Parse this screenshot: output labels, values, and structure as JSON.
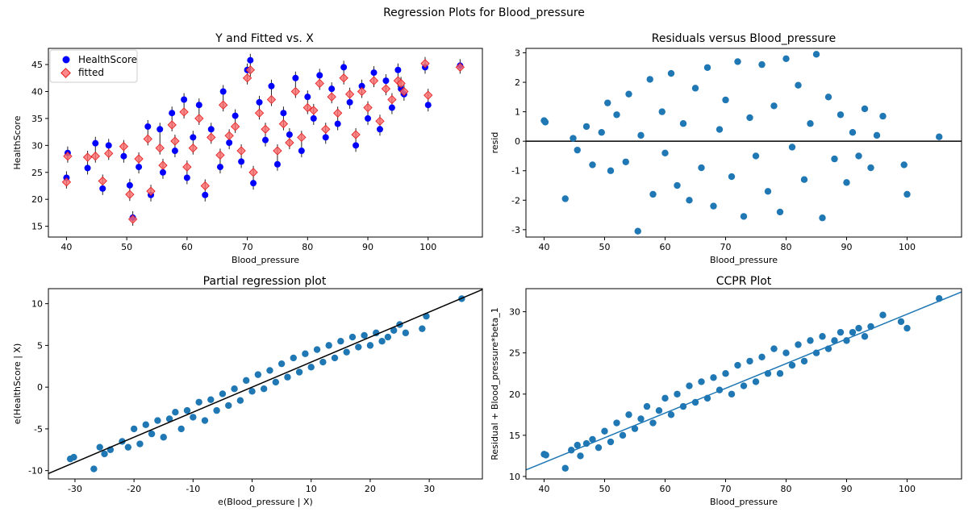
{
  "figure_title": "Regression Plots for Blood_pressure",
  "colors": {
    "observed": "#0000ff",
    "fitted": "#ff6b6b",
    "errorbar": "#222222",
    "scatter": "#1f77b4",
    "refline": "#000000",
    "ccpr_line": "#1f77b4"
  },
  "chart_data": [
    {
      "type": "scatter",
      "title": "Y and Fitted vs. X",
      "xlabel": "Blood_pressure",
      "ylabel": "HealthScore",
      "xlim": [
        37,
        109
      ],
      "ylim": [
        13,
        48
      ],
      "xticks": [
        40,
        50,
        60,
        70,
        80,
        90,
        100
      ],
      "yticks": [
        15,
        20,
        25,
        30,
        35,
        40,
        45
      ],
      "grid": false,
      "legend_position": "top-left",
      "series": [
        {
          "name": "HealthScore",
          "marker": "circle",
          "points": []
        },
        {
          "name": "fitted",
          "marker": "diamond",
          "points": []
        }
      ],
      "points": [
        [
          40,
          24.0,
          23.2
        ],
        [
          40.2,
          28.6,
          28.0
        ],
        [
          43.5,
          25.8,
          27.8
        ],
        [
          44.8,
          30.4,
          28.0
        ],
        [
          46,
          22.0,
          23.4
        ],
        [
          47,
          30.0,
          28.5
        ],
        [
          49.5,
          28.0,
          29.8
        ],
        [
          50.5,
          22.6,
          20.9
        ],
        [
          51,
          16.6,
          16.3
        ],
        [
          52,
          26.0,
          27.5
        ],
        [
          53.5,
          33.5,
          31.2
        ],
        [
          54,
          20.8,
          21.5
        ],
        [
          55.5,
          33.0,
          29.5
        ],
        [
          56,
          25.0,
          26.3
        ],
        [
          57.5,
          36.0,
          33.8
        ],
        [
          58,
          29.0,
          30.8
        ],
        [
          59.5,
          38.5,
          36.2
        ],
        [
          60,
          24.0,
          26.0
        ],
        [
          61,
          31.5,
          29.5
        ],
        [
          62,
          37.5,
          35.0
        ],
        [
          63,
          20.8,
          22.5
        ],
        [
          64,
          33.0,
          31.5
        ],
        [
          65.5,
          26.0,
          28.2
        ],
        [
          66,
          40.0,
          37.5
        ],
        [
          67,
          30.5,
          31.8
        ],
        [
          68,
          35.5,
          33.5
        ],
        [
          69,
          27.0,
          29.0
        ],
        [
          70,
          44.0,
          42.5
        ],
        [
          70.5,
          45.8,
          44.0
        ],
        [
          71,
          23.0,
          25.0
        ],
        [
          72,
          38.0,
          36.0
        ],
        [
          73,
          31.0,
          33.0
        ],
        [
          74,
          41.0,
          38.5
        ],
        [
          75,
          26.5,
          29.0
        ],
        [
          76,
          36.0,
          34.0
        ],
        [
          77,
          32.0,
          30.5
        ],
        [
          78,
          42.5,
          40.0
        ],
        [
          79,
          29.0,
          31.5
        ],
        [
          80,
          39.0,
          37.0
        ],
        [
          81,
          35.0,
          36.5
        ],
        [
          82,
          43.0,
          41.5
        ],
        [
          83,
          31.5,
          33.0
        ],
        [
          84,
          40.5,
          39.0
        ],
        [
          85,
          34.0,
          36.0
        ],
        [
          86,
          44.5,
          42.5
        ],
        [
          87,
          38.0,
          39.5
        ],
        [
          88,
          30.0,
          32.0
        ],
        [
          89,
          41.0,
          40.0
        ],
        [
          90,
          35.0,
          37.0
        ],
        [
          91,
          43.5,
          42.0
        ],
        [
          92,
          33.0,
          34.5
        ],
        [
          93,
          42.0,
          40.5
        ],
        [
          94,
          37.0,
          38.5
        ],
        [
          95,
          44.0,
          42.0
        ],
        [
          95.5,
          40.5,
          41.5
        ],
        [
          96,
          39.5,
          40.0
        ],
        [
          99.5,
          44.5,
          45.2
        ],
        [
          100,
          37.5,
          39.3
        ],
        [
          105.3,
          44.8,
          44.5
        ]
      ]
    },
    {
      "type": "scatter",
      "title": "Residuals versus Blood_pressure",
      "xlabel": "Blood_pressure",
      "ylabel": "resid",
      "xlim": [
        37,
        109
      ],
      "ylim": [
        -3.25,
        3.15
      ],
      "xticks": [
        40,
        50,
        60,
        70,
        80,
        90,
        100
      ],
      "yticks": [
        -3,
        -2,
        -1,
        0,
        1,
        2,
        3
      ],
      "grid": false,
      "hline": 0,
      "points": [
        [
          40,
          0.7
        ],
        [
          40.2,
          0.65
        ],
        [
          43.5,
          -1.95
        ],
        [
          44.8,
          0.1
        ],
        [
          45.5,
          -0.3
        ],
        [
          47,
          0.5
        ],
        [
          48,
          -0.8
        ],
        [
          49.5,
          0.3
        ],
        [
          50.5,
          1.3
        ],
        [
          51,
          -1.0
        ],
        [
          52,
          0.9
        ],
        [
          53.5,
          -0.7
        ],
        [
          54,
          1.6
        ],
        [
          55.5,
          -3.05
        ],
        [
          56,
          0.2
        ],
        [
          57.5,
          2.1
        ],
        [
          58,
          -1.8
        ],
        [
          59.5,
          1.0
        ],
        [
          60,
          -0.4
        ],
        [
          61,
          2.3
        ],
        [
          62,
          -1.5
        ],
        [
          63,
          0.6
        ],
        [
          64,
          -2.0
        ],
        [
          65,
          1.8
        ],
        [
          66,
          -0.9
        ],
        [
          67,
          2.5
        ],
        [
          68,
          -2.2
        ],
        [
          69,
          0.4
        ],
        [
          70,
          1.4
        ],
        [
          71,
          -1.2
        ],
        [
          72,
          2.7
        ],
        [
          73,
          -2.55
        ],
        [
          74,
          0.8
        ],
        [
          75,
          -0.5
        ],
        [
          76,
          2.6
        ],
        [
          77,
          -1.7
        ],
        [
          78,
          1.2
        ],
        [
          79,
          -2.4
        ],
        [
          80,
          2.8
        ],
        [
          81,
          -0.2
        ],
        [
          82,
          1.9
        ],
        [
          83,
          -1.3
        ],
        [
          84,
          0.6
        ],
        [
          85,
          2.95
        ],
        [
          86,
          -2.6
        ],
        [
          87,
          1.5
        ],
        [
          88,
          -0.6
        ],
        [
          89,
          0.9
        ],
        [
          90,
          -1.4
        ],
        [
          91,
          0.3
        ],
        [
          92,
          -0.5
        ],
        [
          93,
          1.1
        ],
        [
          94,
          -0.9
        ],
        [
          95,
          0.2
        ],
        [
          96,
          0.85
        ],
        [
          99.5,
          -0.8
        ],
        [
          100,
          -1.8
        ],
        [
          105.3,
          0.15
        ]
      ]
    },
    {
      "type": "scatter",
      "title": "Partial regression plot",
      "xlabel": "e(Blood_pressure | X)",
      "ylabel": "e(HealthScore | X)",
      "xlim": [
        -34.5,
        39
      ],
      "ylim": [
        -11,
        11.8
      ],
      "xticks": [
        -30,
        -20,
        -10,
        0,
        10,
        20,
        30
      ],
      "yticks": [
        -10,
        -5,
        0,
        5,
        10
      ],
      "grid": false,
      "fit_line": {
        "slope": 0.3,
        "intercept": 0
      },
      "points": [
        [
          -30.8,
          -8.6
        ],
        [
          -30.2,
          -8.4
        ],
        [
          -26.8,
          -9.8
        ],
        [
          -25.8,
          -7.2
        ],
        [
          -25,
          -8.0
        ],
        [
          -24,
          -7.5
        ],
        [
          -22,
          -6.5
        ],
        [
          -21,
          -7.2
        ],
        [
          -20,
          -5.0
        ],
        [
          -19,
          -6.8
        ],
        [
          -18,
          -4.5
        ],
        [
          -17,
          -5.6
        ],
        [
          -16,
          -4.0
        ],
        [
          -15,
          -6.0
        ],
        [
          -14,
          -3.8
        ],
        [
          -13,
          -3.0
        ],
        [
          -12,
          -5.0
        ],
        [
          -11,
          -2.8
        ],
        [
          -10,
          -3.6
        ],
        [
          -9,
          -1.8
        ],
        [
          -8,
          -4.0
        ],
        [
          -7,
          -1.5
        ],
        [
          -6,
          -2.8
        ],
        [
          -5,
          -0.8
        ],
        [
          -4,
          -2.2
        ],
        [
          -3,
          -0.2
        ],
        [
          -2,
          -1.6
        ],
        [
          -1,
          0.8
        ],
        [
          0,
          -0.5
        ],
        [
          1,
          1.5
        ],
        [
          2,
          -0.2
        ],
        [
          3,
          2.0
        ],
        [
          4,
          0.6
        ],
        [
          5,
          2.8
        ],
        [
          6,
          1.2
        ],
        [
          7,
          3.5
        ],
        [
          8,
          1.8
        ],
        [
          9,
          4.0
        ],
        [
          10,
          2.4
        ],
        [
          11,
          4.5
        ],
        [
          12,
          3.0
        ],
        [
          13,
          5.0
        ],
        [
          14,
          3.5
        ],
        [
          15,
          5.5
        ],
        [
          16,
          4.2
        ],
        [
          17,
          6.0
        ],
        [
          18,
          4.8
        ],
        [
          19,
          6.2
        ],
        [
          20,
          5.0
        ],
        [
          21,
          6.5
        ],
        [
          22,
          5.5
        ],
        [
          23,
          6.0
        ],
        [
          24,
          6.8
        ],
        [
          25,
          7.5
        ],
        [
          26,
          6.5
        ],
        [
          28.8,
          7.0
        ],
        [
          29.5,
          8.5
        ],
        [
          35.5,
          10.6
        ]
      ]
    },
    {
      "type": "scatter",
      "title": "CCPR Plot",
      "xlabel": "Blood_pressure",
      "ylabel": "Residual + Blood_pressure*beta_1",
      "xlim": [
        37,
        109
      ],
      "ylim": [
        9.7,
        32.8
      ],
      "xticks": [
        40,
        50,
        60,
        70,
        80,
        90,
        100
      ],
      "yticks": [
        10,
        15,
        20,
        25,
        30
      ],
      "grid": false,
      "fit_line": {
        "slope": 0.3,
        "intercept": 0
      },
      "points": [
        [
          40,
          12.7
        ],
        [
          40.3,
          12.6
        ],
        [
          43.5,
          11.0
        ],
        [
          44.5,
          13.2
        ],
        [
          45.5,
          13.8
        ],
        [
          46,
          12.5
        ],
        [
          47,
          14.0
        ],
        [
          48,
          14.5
        ],
        [
          49,
          13.5
        ],
        [
          50,
          15.5
        ],
        [
          51,
          14.2
        ],
        [
          52,
          16.5
        ],
        [
          53,
          15.0
        ],
        [
          54,
          17.5
        ],
        [
          55,
          15.8
        ],
        [
          56,
          17.0
        ],
        [
          57,
          18.5
        ],
        [
          58,
          16.5
        ],
        [
          59,
          18.0
        ],
        [
          60,
          19.5
        ],
        [
          61,
          17.5
        ],
        [
          62,
          20.0
        ],
        [
          63,
          18.5
        ],
        [
          64,
          21.0
        ],
        [
          65,
          19.0
        ],
        [
          66,
          21.5
        ],
        [
          67,
          19.5
        ],
        [
          68,
          22.0
        ],
        [
          69,
          20.5
        ],
        [
          70,
          22.5
        ],
        [
          71,
          20.0
        ],
        [
          72,
          23.5
        ],
        [
          73,
          21.0
        ],
        [
          74,
          24.0
        ],
        [
          75,
          21.5
        ],
        [
          76,
          24.5
        ],
        [
          77,
          22.5
        ],
        [
          78,
          25.5
        ],
        [
          79,
          22.5
        ],
        [
          80,
          25.0
        ],
        [
          81,
          23.5
        ],
        [
          82,
          26.0
        ],
        [
          83,
          24.0
        ],
        [
          84,
          26.5
        ],
        [
          85,
          25.0
        ],
        [
          86,
          27.0
        ],
        [
          87,
          25.5
        ],
        [
          88,
          26.5
        ],
        [
          89,
          27.5
        ],
        [
          90,
          26.5
        ],
        [
          91,
          27.5
        ],
        [
          92,
          28.0
        ],
        [
          93,
          27.0
        ],
        [
          94,
          28.2
        ],
        [
          96,
          29.6
        ],
        [
          99,
          28.8
        ],
        [
          100,
          28.0
        ],
        [
          105.3,
          31.6
        ]
      ]
    }
  ]
}
